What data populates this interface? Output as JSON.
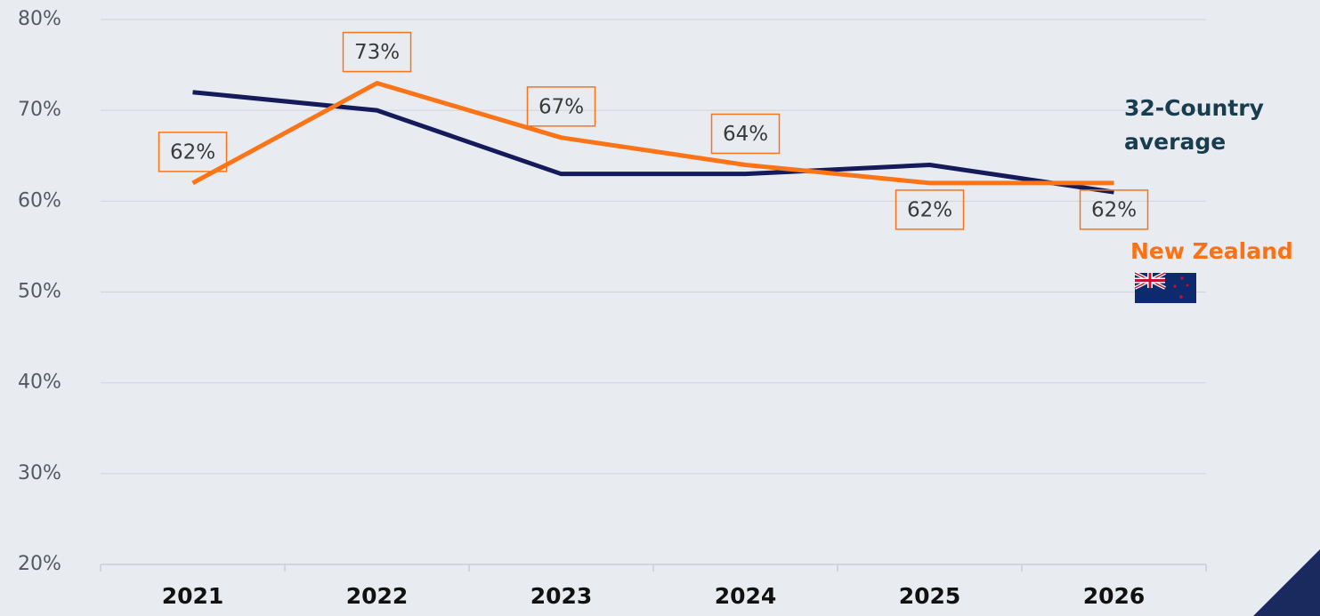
{
  "chart_data": {
    "type": "line",
    "categories": [
      "2021",
      "2022",
      "2023",
      "2024",
      "2025",
      "2026"
    ],
    "series": [
      {
        "name": "32-Country average",
        "color": "#141a5a",
        "values": [
          72,
          70,
          63,
          63,
          64,
          61
        ]
      },
      {
        "name": "New Zealand",
        "color": "#fb7418",
        "values": [
          62,
          73,
          67,
          64,
          62,
          62
        ],
        "value_labels": [
          "62%",
          "73%",
          "67%",
          "64%",
          "62%",
          "62%"
        ]
      }
    ],
    "ylim": [
      20,
      80
    ],
    "yticks": [
      {
        "value": 20,
        "label": "20%"
      },
      {
        "value": 30,
        "label": "30%"
      },
      {
        "value": 40,
        "label": "40%"
      },
      {
        "value": 50,
        "label": "50%"
      },
      {
        "value": 60,
        "label": "60%"
      },
      {
        "value": 70,
        "label": "70%"
      },
      {
        "value": 80,
        "label": "80%"
      }
    ],
    "grid": true
  }
}
